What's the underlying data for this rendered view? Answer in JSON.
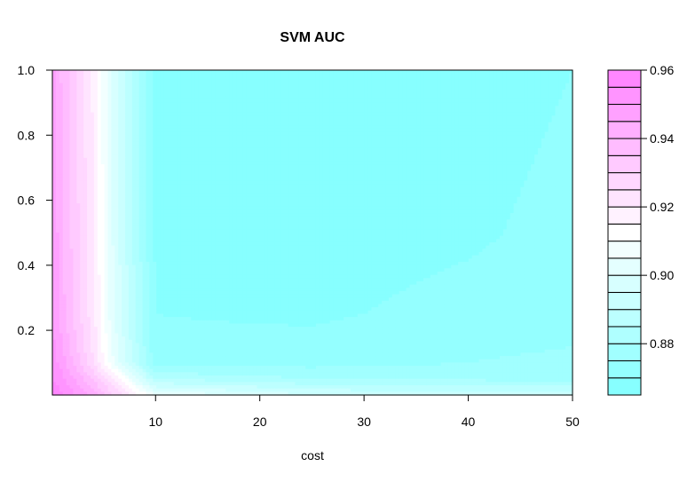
{
  "chart_data": {
    "type": "heatmap",
    "title": "SVM AUC",
    "xlabel": "cost",
    "ylabel": "",
    "xlim": [
      0.1,
      50
    ],
    "ylim": [
      0.001,
      1.0
    ],
    "x_ticks": [
      "10",
      "20",
      "30",
      "40",
      "50"
    ],
    "y_ticks": [
      "0.2",
      "0.4",
      "0.6",
      "0.8",
      "1.0"
    ],
    "x": [
      0.1,
      1,
      4,
      6,
      10,
      25,
      40,
      50
    ],
    "y": [
      0.001,
      0.05,
      0.1,
      0.25,
      0.5,
      0.75,
      1.0
    ],
    "z": [
      [
        0.958,
        0.956,
        0.943,
        0.93,
        0.905,
        0.895,
        0.893,
        0.893
      ],
      [
        0.955,
        0.952,
        0.935,
        0.92,
        0.885,
        0.88,
        0.879,
        0.878
      ],
      [
        0.952,
        0.948,
        0.925,
        0.905,
        0.872,
        0.873,
        0.875,
        0.876
      ],
      [
        0.95,
        0.942,
        0.922,
        0.9,
        0.87,
        0.869,
        0.872,
        0.873
      ],
      [
        0.95,
        0.941,
        0.921,
        0.899,
        0.869,
        0.867,
        0.869,
        0.872
      ],
      [
        0.95,
        0.94,
        0.92,
        0.898,
        0.868,
        0.866,
        0.868,
        0.871
      ],
      [
        0.95,
        0.939,
        0.919,
        0.897,
        0.868,
        0.866,
        0.867,
        0.87
      ]
    ],
    "colorbar": {
      "min": 0.865,
      "max": 0.96,
      "n_levels": 19,
      "tick_labels": [
        "0.88",
        "0.90",
        "0.92",
        "0.94",
        "0.96"
      ],
      "tick_values": [
        0.88,
        0.9,
        0.92,
        0.94,
        0.96
      ],
      "low_color": "#80FFFF",
      "high_color": "#FF80FF"
    }
  }
}
